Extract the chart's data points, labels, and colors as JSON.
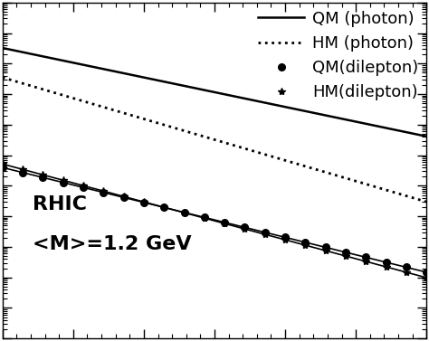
{
  "annotation_line1": "RHIC",
  "annotation_line2": "<M>=1.2 GeV",
  "legend_entries": [
    "QM (photon)",
    "HM (photon)",
    "QM(dilepton)",
    "HM(dilepton)"
  ],
  "xlim": [
    1.0,
    4.0
  ],
  "background_color": "#ffffff",
  "text_color": "#000000",
  "annotation_fontsize": 16,
  "legend_fontsize": 13,
  "photon_qm_A": 3000.0,
  "photon_qm_T": 0.45,
  "photon_hm_A": 800.0,
  "photon_hm_T": 0.32,
  "dilepton_qm_A": 0.55,
  "dilepton_qm_T": 0.38,
  "dilepton_hm_A": 0.9,
  "dilepton_hm_T": 0.35,
  "ylim_min": 1e-07,
  "ylim_max": 10000.0,
  "n_markers": 22
}
